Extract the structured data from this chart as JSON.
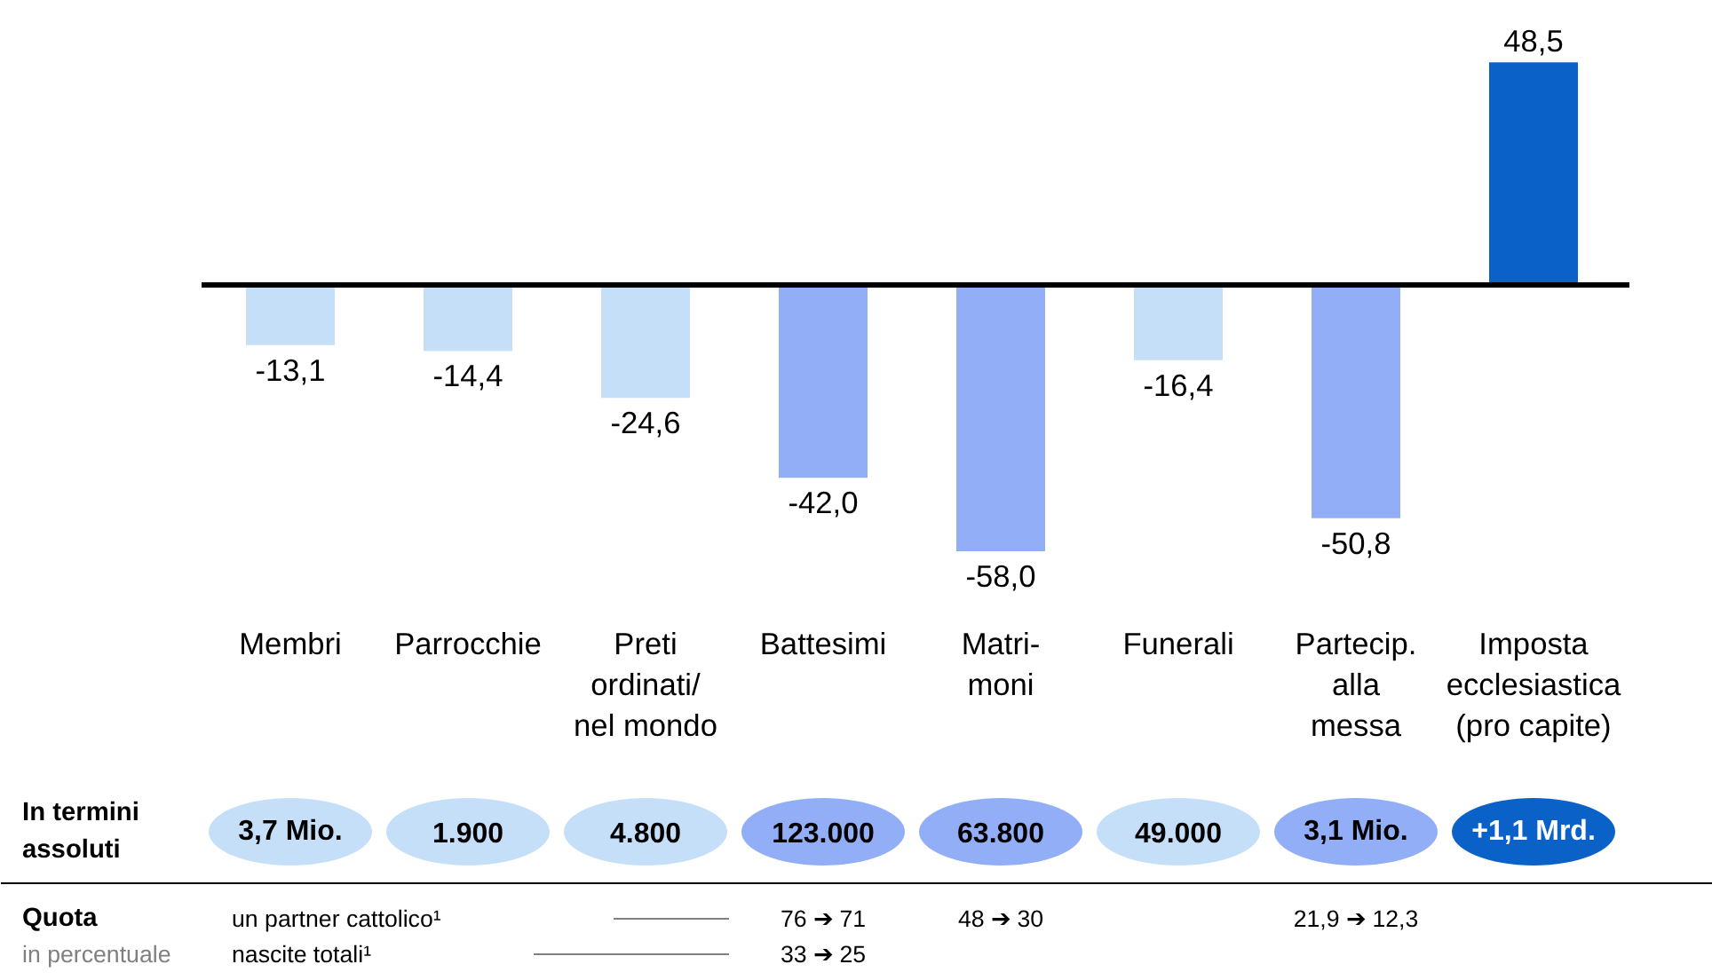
{
  "chart_data": {
    "type": "bar",
    "categories": [
      "Membri",
      "Parrocchie",
      "Preti\nordinati/\nnel mondo",
      "Battesimi",
      "Matri-\nmoni",
      "Funerali",
      "Partecip.\nalla\nmessa",
      "Imposta\necclesiastica\n(pro capite)"
    ],
    "values": [
      -13.1,
      -14.4,
      -24.6,
      -42.0,
      -58.0,
      -16.4,
      -50.8,
      48.5
    ],
    "value_labels": [
      "-13,1",
      "-14,4",
      "-24,6",
      "-42,0",
      "-58,0",
      "-16,4",
      "-50,8",
      "48,5"
    ],
    "colors": [
      "#c6dff9",
      "#c6dff9",
      "#c6dff9",
      "#91aef6",
      "#91aef6",
      "#c6dff9",
      "#91aef6",
      "#0a62c8"
    ],
    "annotations": [
      "In termini\nassoluti",
      "3,7 Mio.",
      "1.900",
      "4.800",
      "123.000",
      "63.800",
      "49.000",
      "3,1 Mio.",
      "+1,1 Mrd.",
      "Quota",
      "in percentuale",
      "un partner cattolico¹",
      "nascite totali¹",
      "76 ➔ 71",
      "33 ➔ 25",
      "48 ➔ 30",
      "21,9 ➔ 12,3"
    ]
  }
}
